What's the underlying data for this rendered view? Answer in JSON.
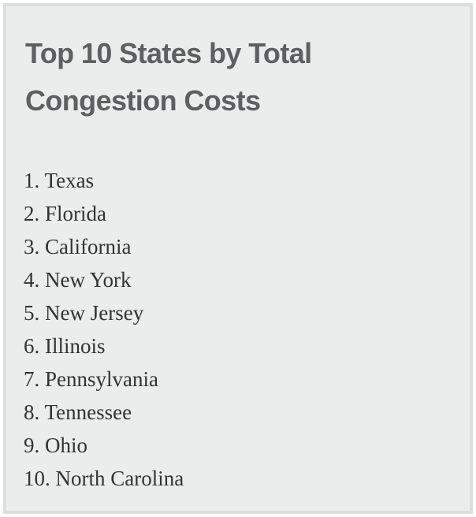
{
  "title": "Top 10 States by Total Congestion Costs",
  "items": [
    "1. Texas",
    "2. Florida",
    "3. California",
    "4. New York",
    "5. New Jersey",
    "6. Illinois",
    "7. Pennsylvania",
    "8. Tennessee",
    "9. Ohio",
    "10. North Carolina"
  ]
}
